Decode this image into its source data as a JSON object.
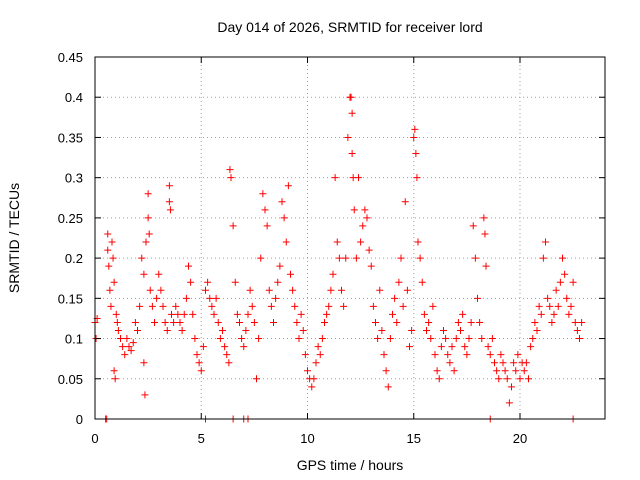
{
  "chart_data": {
    "type": "scatter",
    "title": "Day 014 of 2026, SRMTID for receiver lord",
    "xlabel": "GPS time / hours",
    "ylabel": "SRMTID / TECUs",
    "xlim": [
      0,
      24
    ],
    "ylim": [
      0,
      0.45
    ],
    "xticks": [
      0,
      5,
      10,
      15,
      20
    ],
    "yticks": [
      0,
      0.05,
      0.1,
      0.15,
      0.2,
      0.25,
      0.3,
      0.35,
      0.4,
      0.45
    ],
    "grid": true,
    "marker": "plus",
    "color": "#ff0000",
    "series": [
      {
        "points": [
          [
            0.0,
            0.12
          ],
          [
            0.05,
            0.1
          ],
          [
            0.1,
            0.125
          ],
          [
            0.5,
            0.0
          ],
          [
            0.55,
            0.0
          ],
          [
            0.6,
            0.21
          ],
          [
            0.6,
            0.23
          ],
          [
            0.65,
            0.19
          ],
          [
            0.7,
            0.16
          ],
          [
            0.75,
            0.14
          ],
          [
            0.8,
            0.22
          ],
          [
            0.85,
            0.2
          ],
          [
            0.9,
            0.17
          ],
          [
            0.9,
            0.06
          ],
          [
            0.95,
            0.05
          ],
          [
            1.0,
            0.13
          ],
          [
            1.05,
            0.12
          ],
          [
            1.1,
            0.11
          ],
          [
            1.2,
            0.1
          ],
          [
            1.3,
            0.09
          ],
          [
            1.4,
            0.08
          ],
          [
            1.5,
            0.1
          ],
          [
            1.6,
            0.09
          ],
          [
            1.7,
            0.085
          ],
          [
            1.8,
            0.095
          ],
          [
            1.9,
            0.12
          ],
          [
            2.0,
            0.11
          ],
          [
            2.1,
            0.14
          ],
          [
            2.2,
            0.2
          ],
          [
            2.3,
            0.18
          ],
          [
            2.3,
            0.07
          ],
          [
            2.35,
            0.03
          ],
          [
            2.4,
            0.22
          ],
          [
            2.5,
            0.25
          ],
          [
            2.5,
            0.28
          ],
          [
            2.55,
            0.23
          ],
          [
            2.6,
            0.16
          ],
          [
            2.7,
            0.14
          ],
          [
            2.8,
            0.12
          ],
          [
            2.9,
            0.15
          ],
          [
            3.0,
            0.18
          ],
          [
            3.1,
            0.16
          ],
          [
            3.2,
            0.14
          ],
          [
            3.3,
            0.12
          ],
          [
            3.4,
            0.11
          ],
          [
            3.5,
            0.29
          ],
          [
            3.5,
            0.27
          ],
          [
            3.55,
            0.26
          ],
          [
            3.6,
            0.13
          ],
          [
            3.7,
            0.12
          ],
          [
            3.8,
            0.14
          ],
          [
            3.9,
            0.13
          ],
          [
            4.0,
            0.12
          ],
          [
            4.1,
            0.11
          ],
          [
            4.2,
            0.13
          ],
          [
            4.3,
            0.15
          ],
          [
            4.4,
            0.19
          ],
          [
            4.5,
            0.17
          ],
          [
            4.6,
            0.13
          ],
          [
            4.7,
            0.1
          ],
          [
            4.8,
            0.08
          ],
          [
            4.9,
            0.07
          ],
          [
            5.0,
            0.06
          ],
          [
            5.1,
            0.09
          ],
          [
            5.2,
            0.0
          ],
          [
            5.2,
            0.16
          ],
          [
            5.3,
            0.17
          ],
          [
            5.4,
            0.15
          ],
          [
            5.5,
            0.14
          ],
          [
            5.6,
            0.13
          ],
          [
            5.7,
            0.15
          ],
          [
            5.8,
            0.12
          ],
          [
            5.9,
            0.1
          ],
          [
            6.0,
            0.11
          ],
          [
            6.1,
            0.09
          ],
          [
            6.2,
            0.08
          ],
          [
            6.3,
            0.07
          ],
          [
            6.35,
            0.31
          ],
          [
            6.4,
            0.3
          ],
          [
            6.5,
            0.0
          ],
          [
            6.5,
            0.24
          ],
          [
            6.6,
            0.17
          ],
          [
            6.7,
            0.13
          ],
          [
            6.8,
            0.12
          ],
          [
            6.9,
            0.1
          ],
          [
            7.0,
            0.0
          ],
          [
            7.0,
            0.09
          ],
          [
            7.1,
            0.11
          ],
          [
            7.2,
            0.0
          ],
          [
            7.2,
            0.13
          ],
          [
            7.3,
            0.16
          ],
          [
            7.4,
            0.14
          ],
          [
            7.5,
            0.12
          ],
          [
            7.6,
            0.05
          ],
          [
            7.7,
            0.1
          ],
          [
            7.8,
            0.2
          ],
          [
            7.9,
            0.28
          ],
          [
            8.0,
            0.26
          ],
          [
            8.1,
            0.24
          ],
          [
            8.2,
            0.16
          ],
          [
            8.3,
            0.14
          ],
          [
            8.4,
            0.12
          ],
          [
            8.5,
            0.15
          ],
          [
            8.6,
            0.17
          ],
          [
            8.7,
            0.19
          ],
          [
            8.8,
            0.27
          ],
          [
            8.9,
            0.25
          ],
          [
            9.0,
            0.22
          ],
          [
            9.1,
            0.29
          ],
          [
            9.2,
            0.18
          ],
          [
            9.3,
            0.16
          ],
          [
            9.4,
            0.14
          ],
          [
            9.5,
            0.12
          ],
          [
            9.6,
            0.1
          ],
          [
            9.7,
            0.13
          ],
          [
            9.8,
            0.11
          ],
          [
            9.9,
            0.08
          ],
          [
            10.0,
            0.06
          ],
          [
            10.1,
            0.05
          ],
          [
            10.2,
            0.04
          ],
          [
            10.3,
            0.05
          ],
          [
            10.4,
            0.07
          ],
          [
            10.5,
            0.09
          ],
          [
            10.6,
            0.08
          ],
          [
            10.7,
            0.1
          ],
          [
            10.8,
            0.12
          ],
          [
            10.9,
            0.13
          ],
          [
            11.0,
            0.14
          ],
          [
            11.1,
            0.16
          ],
          [
            11.2,
            0.18
          ],
          [
            11.3,
            0.3
          ],
          [
            11.4,
            0.22
          ],
          [
            11.5,
            0.2
          ],
          [
            11.6,
            0.16
          ],
          [
            11.7,
            0.14
          ],
          [
            11.8,
            0.2
          ],
          [
            11.9,
            0.35
          ],
          [
            12.0,
            0.4
          ],
          [
            12.05,
            0.4
          ],
          [
            12.1,
            0.38
          ],
          [
            12.1,
            0.33
          ],
          [
            12.15,
            0.3
          ],
          [
            12.2,
            0.26
          ],
          [
            12.3,
            0.2
          ],
          [
            12.4,
            0.3
          ],
          [
            12.5,
            0.22
          ],
          [
            12.6,
            0.24
          ],
          [
            12.7,
            0.26
          ],
          [
            12.8,
            0.25
          ],
          [
            12.9,
            0.21
          ],
          [
            13.0,
            0.19
          ],
          [
            13.1,
            0.14
          ],
          [
            13.2,
            0.12
          ],
          [
            13.3,
            0.1
          ],
          [
            13.4,
            0.16
          ],
          [
            13.5,
            0.11
          ],
          [
            13.6,
            0.08
          ],
          [
            13.7,
            0.06
          ],
          [
            13.8,
            0.04
          ],
          [
            13.9,
            0.1
          ],
          [
            14.0,
            0.13
          ],
          [
            14.1,
            0.15
          ],
          [
            14.2,
            0.12
          ],
          [
            14.3,
            0.17
          ],
          [
            14.4,
            0.2
          ],
          [
            14.5,
            0.14
          ],
          [
            14.6,
            0.27
          ],
          [
            14.7,
            0.16
          ],
          [
            14.8,
            0.09
          ],
          [
            14.9,
            0.11
          ],
          [
            15.0,
            0.35
          ],
          [
            15.05,
            0.36
          ],
          [
            15.1,
            0.33
          ],
          [
            15.15,
            0.3
          ],
          [
            15.2,
            0.22
          ],
          [
            15.3,
            0.2
          ],
          [
            15.4,
            0.17
          ],
          [
            15.5,
            0.13
          ],
          [
            15.6,
            0.11
          ],
          [
            15.7,
            0.12
          ],
          [
            15.8,
            0.1
          ],
          [
            15.9,
            0.14
          ],
          [
            16.0,
            0.08
          ],
          [
            16.1,
            0.06
          ],
          [
            16.2,
            0.05
          ],
          [
            16.3,
            0.09
          ],
          [
            16.4,
            0.11
          ],
          [
            16.5,
            0.1
          ],
          [
            16.6,
            0.08
          ],
          [
            16.7,
            0.07
          ],
          [
            16.8,
            0.09
          ],
          [
            16.9,
            0.06
          ],
          [
            17.0,
            0.1
          ],
          [
            17.1,
            0.12
          ],
          [
            17.2,
            0.11
          ],
          [
            17.3,
            0.13
          ],
          [
            17.4,
            0.09
          ],
          [
            17.5,
            0.08
          ],
          [
            17.6,
            0.1
          ],
          [
            17.7,
            0.12
          ],
          [
            17.8,
            0.24
          ],
          [
            17.9,
            0.2
          ],
          [
            18.0,
            0.15
          ],
          [
            18.1,
            0.12
          ],
          [
            18.2,
            0.1
          ],
          [
            18.3,
            0.25
          ],
          [
            18.35,
            0.23
          ],
          [
            18.4,
            0.19
          ],
          [
            18.5,
            0.09
          ],
          [
            18.6,
            0.0
          ],
          [
            18.6,
            0.08
          ],
          [
            18.7,
            0.1
          ],
          [
            18.8,
            0.07
          ],
          [
            18.9,
            0.06
          ],
          [
            19.0,
            0.05
          ],
          [
            19.1,
            0.08
          ],
          [
            19.2,
            0.07
          ],
          [
            19.3,
            0.06
          ],
          [
            19.4,
            0.05
          ],
          [
            19.5,
            0.02
          ],
          [
            19.6,
            0.04
          ],
          [
            19.7,
            0.07
          ],
          [
            19.8,
            0.06
          ],
          [
            19.9,
            0.08
          ],
          [
            20.0,
            0.05
          ],
          [
            20.1,
            0.07
          ],
          [
            20.2,
            0.06
          ],
          [
            20.3,
            0.07
          ],
          [
            20.4,
            0.05
          ],
          [
            20.5,
            0.09
          ],
          [
            20.6,
            0.1
          ],
          [
            20.7,
            0.12
          ],
          [
            20.8,
            0.11
          ],
          [
            20.9,
            0.14
          ],
          [
            21.0,
            0.13
          ],
          [
            21.1,
            0.2
          ],
          [
            21.2,
            0.22
          ],
          [
            21.3,
            0.15
          ],
          [
            21.4,
            0.14
          ],
          [
            21.5,
            0.12
          ],
          [
            21.6,
            0.13
          ],
          [
            21.7,
            0.16
          ],
          [
            21.8,
            0.14
          ],
          [
            21.9,
            0.17
          ],
          [
            22.0,
            0.2
          ],
          [
            22.1,
            0.18
          ],
          [
            22.2,
            0.15
          ],
          [
            22.3,
            0.13
          ],
          [
            22.4,
            0.14
          ],
          [
            22.5,
            0.0
          ],
          [
            22.5,
            0.17
          ],
          [
            22.6,
            0.12
          ],
          [
            22.7,
            0.11
          ],
          [
            22.8,
            0.1
          ],
          [
            22.9,
            0.12
          ]
        ]
      }
    ]
  }
}
